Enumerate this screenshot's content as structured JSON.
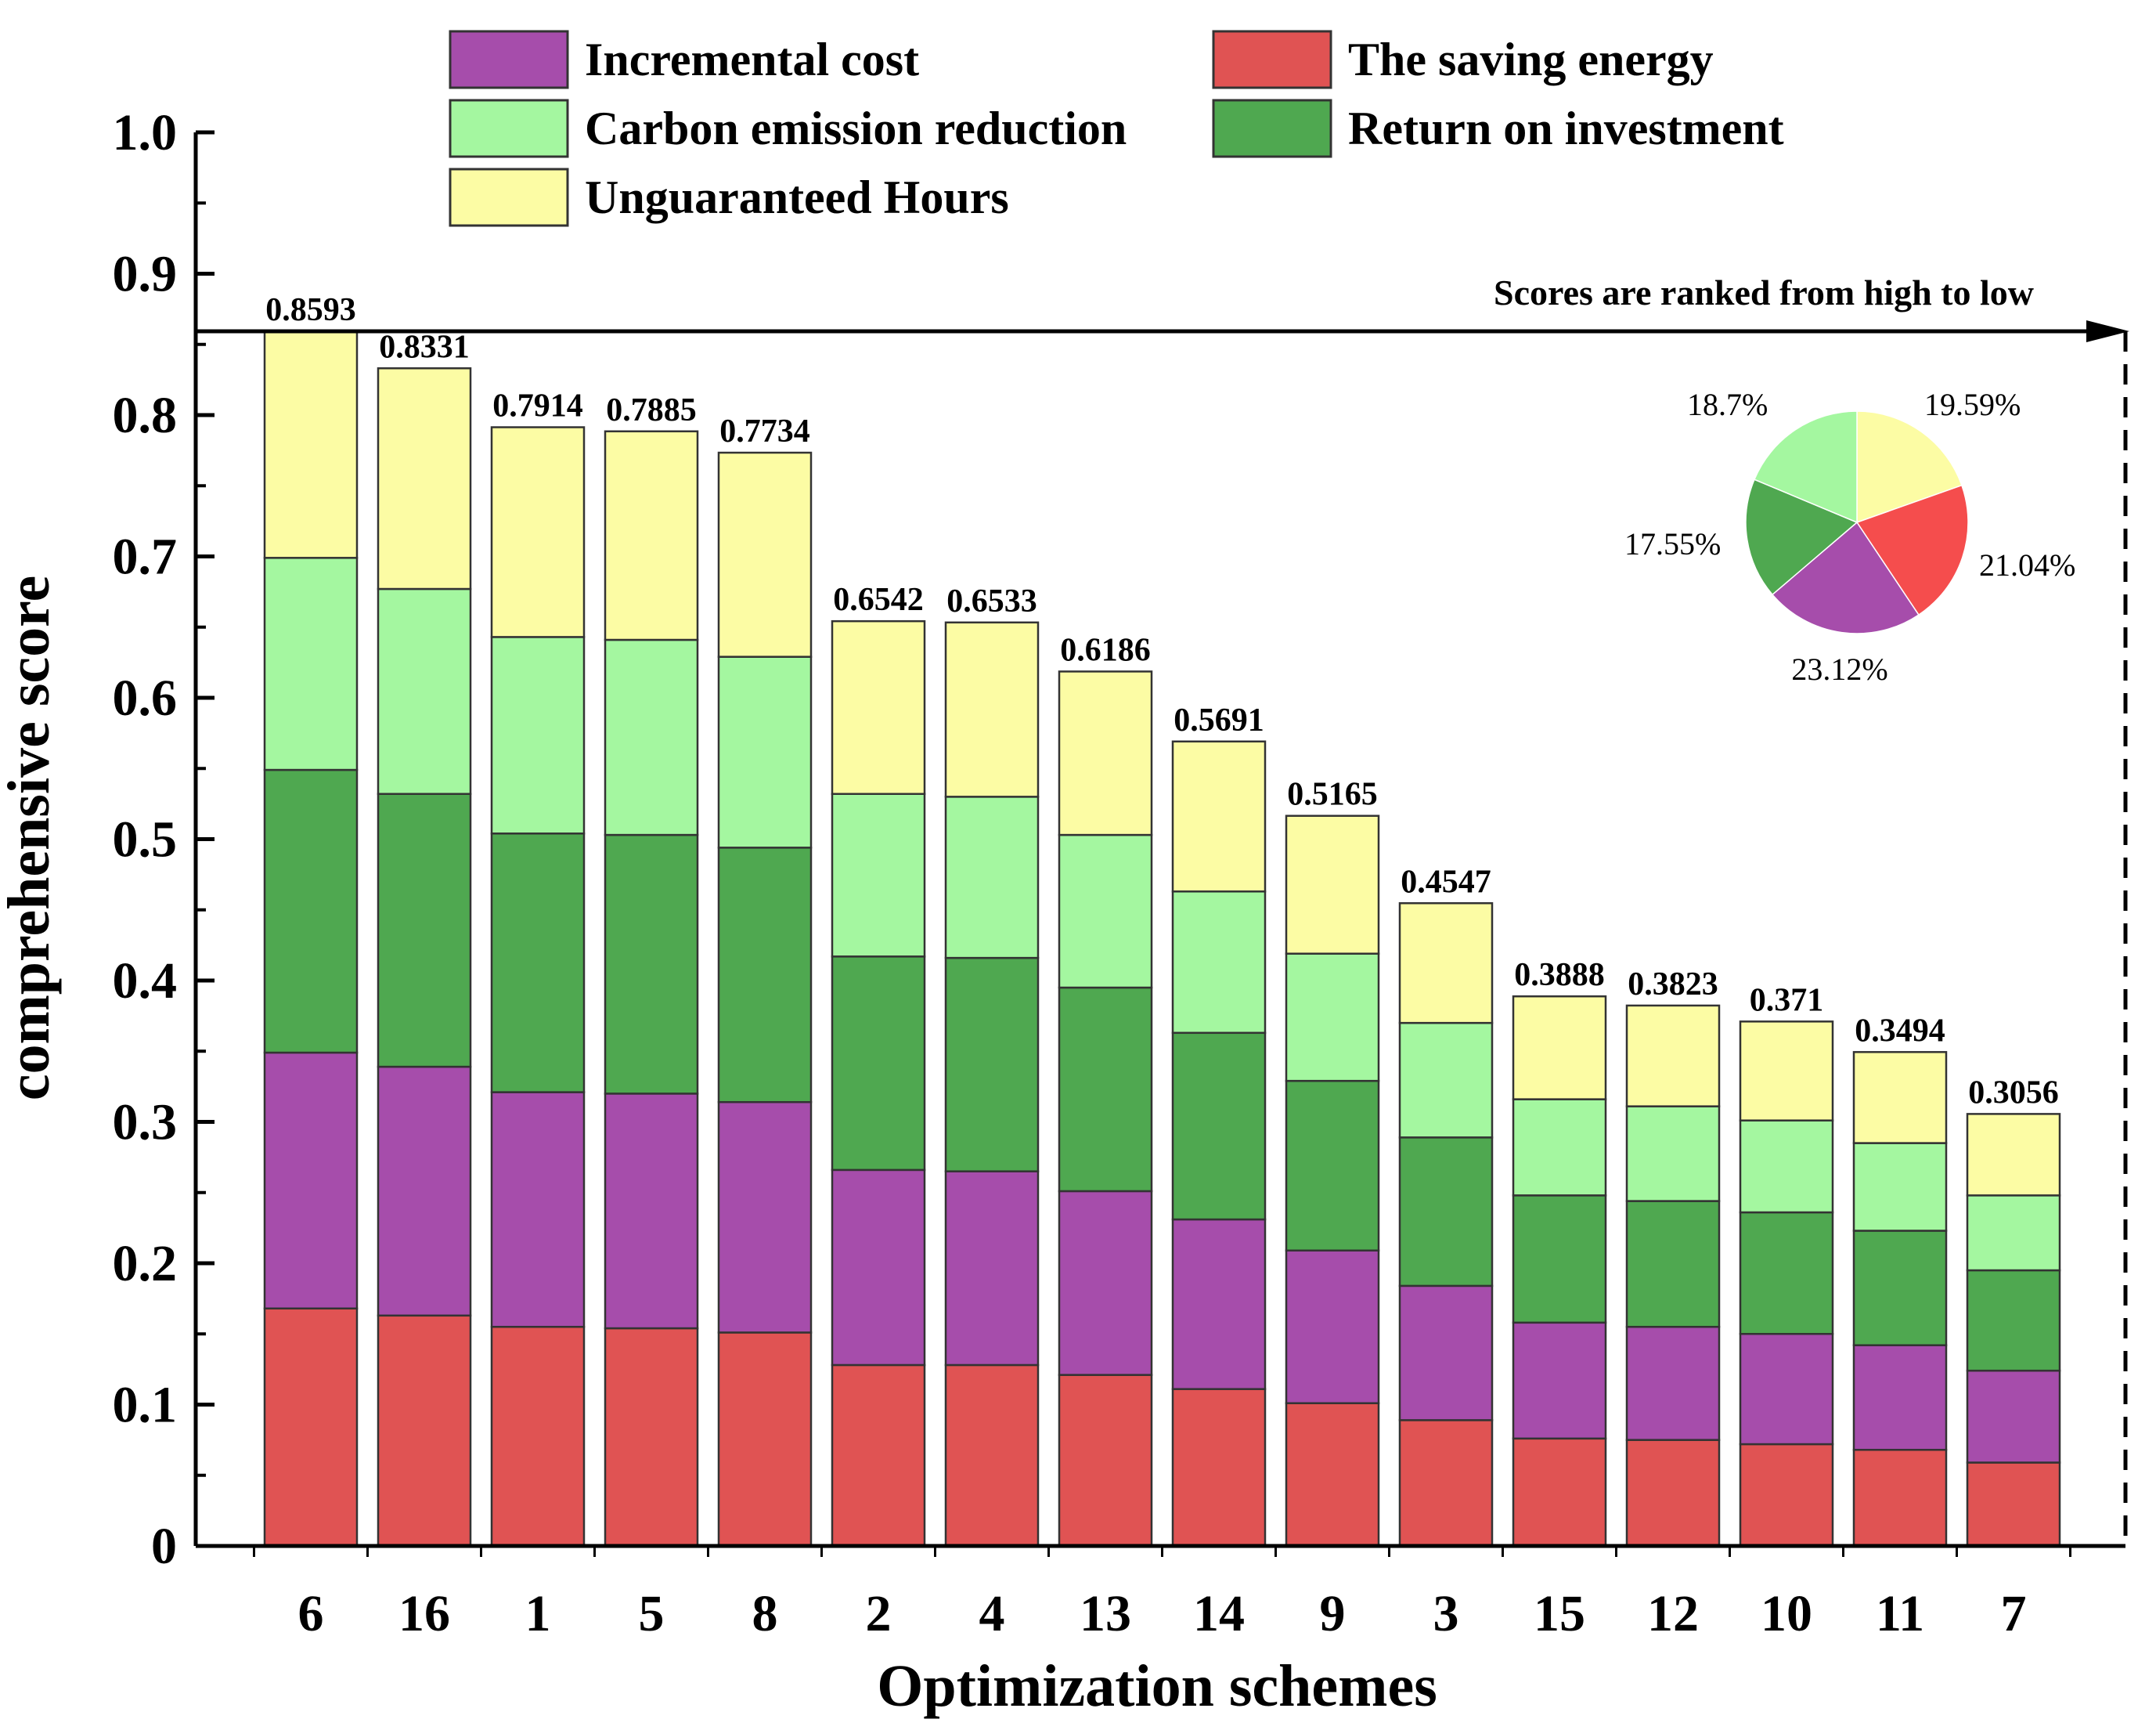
{
  "chart_data": {
    "type": "bar",
    "stacked": true,
    "xlabel": "Optimization schemes",
    "ylabel": "comprehensive score",
    "ylim": [
      0,
      1.0
    ],
    "yticks": [
      "0",
      "0.1",
      "0.2",
      "0.3",
      "0.4",
      "0.5",
      "0.6",
      "0.7",
      "0.8",
      "0.9",
      "1.0"
    ],
    "categories": [
      "6",
      "16",
      "1",
      "5",
      "8",
      "2",
      "4",
      "13",
      "14",
      "9",
      "3",
      "15",
      "12",
      "10",
      "11",
      "7"
    ],
    "total_labels": [
      "0.8593",
      "0.8331",
      "0.7914",
      "0.7885",
      "0.7734",
      "0.6542",
      "0.6533",
      "0.6186",
      "0.5691",
      "0.5165",
      "0.4547",
      "0.3888",
      "0.3823",
      "0.371",
      "0.3494",
      "0.3056"
    ],
    "series": [
      {
        "name": "The saving energy",
        "color": "#e05353",
        "values": [
          0.168,
          0.163,
          0.155,
          0.154,
          0.151,
          0.128,
          0.128,
          0.121,
          0.111,
          0.101,
          0.089,
          0.076,
          0.075,
          0.072,
          0.068,
          0.059
        ]
      },
      {
        "name": "Incremental cost",
        "color": "#a64dab",
        "values": [
          0.181,
          0.176,
          0.166,
          0.166,
          0.163,
          0.138,
          0.137,
          0.13,
          0.12,
          0.108,
          0.095,
          0.082,
          0.08,
          0.078,
          0.074,
          0.065
        ]
      },
      {
        "name": "Return on investment",
        "color": "#4fa850",
        "values": [
          0.2,
          0.193,
          0.183,
          0.183,
          0.18,
          0.151,
          0.151,
          0.144,
          0.132,
          0.12,
          0.105,
          0.09,
          0.089,
          0.086,
          0.081,
          0.071
        ]
      },
      {
        "name": "Carbon emission reduction",
        "color": "#a4f7a0",
        "values": [
          0.15,
          0.145,
          0.139,
          0.138,
          0.135,
          0.115,
          0.114,
          0.108,
          0.1,
          0.09,
          0.081,
          0.068,
          0.067,
          0.065,
          0.062,
          0.053
        ]
      },
      {
        "name": "Unguaranteed Hours",
        "color": "#fcfca4",
        "values": [
          0.1603,
          0.1561,
          0.1484,
          0.1475,
          0.1444,
          0.1222,
          0.1233,
          0.1156,
          0.1061,
          0.0975,
          0.0847,
          0.0728,
          0.0713,
          0.07,
          0.0644,
          0.0576
        ]
      }
    ],
    "legend": {
      "placement": "top",
      "items": [
        "Incremental cost",
        "The saving energy",
        "Carbon emission reduction",
        "Return on investment",
        "Unguaranteed Hours"
      ]
    },
    "annotation": "Scores are ranked from high to low",
    "annotation_value": 0.8593,
    "inset_pie": {
      "type": "pie",
      "placement": "top-right",
      "slices": [
        {
          "label": "19.59%",
          "value": 19.59,
          "color": "#fcfca4"
        },
        {
          "label": "21.04%",
          "value": 21.04,
          "color": "#f54d4d"
        },
        {
          "label": "23.12%",
          "value": 23.12,
          "color": "#a64dab"
        },
        {
          "label": "17.55%",
          "value": 17.55,
          "color": "#4fa850"
        },
        {
          "label": "18.7%",
          "value": 18.7,
          "color": "#a4f7a0"
        }
      ]
    }
  }
}
